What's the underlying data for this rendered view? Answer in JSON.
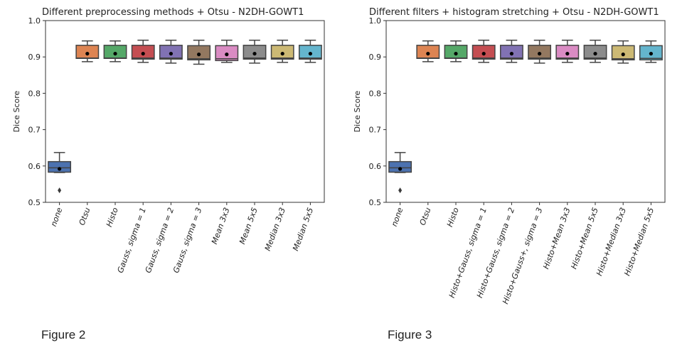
{
  "figures": [
    {
      "caption": "Figure 2"
    },
    {
      "caption": "Figure 3"
    }
  ],
  "chart_data": [
    {
      "type": "box",
      "title": "Different preprocessing methods + Otsu - N2DH-GOWT1",
      "ylabel": "Dice Score",
      "xlabel": "",
      "ylim": [
        0.5,
        1.0
      ],
      "yticks": [
        "0.5",
        "0.6",
        "0.7",
        "0.8",
        "0.9",
        "1.0"
      ],
      "grid": false,
      "mean_marker": "black dot",
      "categories": [
        "none",
        "Otsu",
        "Histo",
        "Gauss, sigma = 1",
        "Gauss, sigma = 2",
        "Gauss, sigma = 3",
        "Mean 3x3",
        "Mean 5x5",
        "Median 3x3",
        "Median 5x5"
      ],
      "colors": [
        "#4c72b0",
        "#dd8452",
        "#55a868",
        "#c44e52",
        "#8172b3",
        "#937860",
        "#da8bc3",
        "#8c8c8c",
        "#ccb974",
        "#64b5cd"
      ],
      "boxes": [
        {
          "whislo": 0.582,
          "q1": 0.583,
          "med": 0.595,
          "q3": 0.612,
          "whishi": 0.637,
          "mean": 0.592,
          "fliers": [
            0.533
          ]
        },
        {
          "whislo": 0.887,
          "q1": 0.896,
          "med": 0.897,
          "q3": 0.932,
          "whishi": 0.944,
          "mean": 0.909,
          "fliers": []
        },
        {
          "whislo": 0.887,
          "q1": 0.896,
          "med": 0.897,
          "q3": 0.932,
          "whishi": 0.944,
          "mean": 0.909,
          "fliers": []
        },
        {
          "whislo": 0.885,
          "q1": 0.894,
          "med": 0.897,
          "q3": 0.932,
          "whishi": 0.946,
          "mean": 0.909,
          "fliers": []
        },
        {
          "whislo": 0.883,
          "q1": 0.894,
          "med": 0.897,
          "q3": 0.932,
          "whishi": 0.946,
          "mean": 0.909,
          "fliers": []
        },
        {
          "whislo": 0.88,
          "q1": 0.892,
          "med": 0.895,
          "q3": 0.931,
          "whishi": 0.946,
          "mean": 0.907,
          "fliers": []
        },
        {
          "whislo": 0.885,
          "q1": 0.89,
          "med": 0.895,
          "q3": 0.931,
          "whishi": 0.946,
          "mean": 0.907,
          "fliers": []
        },
        {
          "whislo": 0.883,
          "q1": 0.894,
          "med": 0.897,
          "q3": 0.932,
          "whishi": 0.946,
          "mean": 0.909,
          "fliers": []
        },
        {
          "whislo": 0.885,
          "q1": 0.894,
          "med": 0.897,
          "q3": 0.932,
          "whishi": 0.946,
          "mean": 0.909,
          "fliers": []
        },
        {
          "whislo": 0.885,
          "q1": 0.894,
          "med": 0.897,
          "q3": 0.932,
          "whishi": 0.946,
          "mean": 0.909,
          "fliers": []
        }
      ]
    },
    {
      "type": "box",
      "title": "Different filters + histogram stretching + Otsu - N2DH-GOWT1",
      "ylabel": "Dice Score",
      "xlabel": "",
      "ylim": [
        0.5,
        1.0
      ],
      "yticks": [
        "0.5",
        "0.6",
        "0.7",
        "0.8",
        "0.9",
        "1.0"
      ],
      "grid": false,
      "mean_marker": "black dot",
      "categories": [
        "none",
        "Otsu",
        "Histo",
        "Histo+Gauss, sigma = 1",
        "Histo+Gauss, sigma = 2",
        "Histo+Gauss+, sigma = 3",
        "Histo+Mean 3x3",
        "Histo+Mean 5x5",
        "Histo+Median 3x3",
        "Histo+Median 5x5"
      ],
      "colors": [
        "#4c72b0",
        "#dd8452",
        "#55a868",
        "#c44e52",
        "#8172b3",
        "#937860",
        "#da8bc3",
        "#8c8c8c",
        "#ccb974",
        "#64b5cd"
      ],
      "boxes": [
        {
          "whislo": 0.582,
          "q1": 0.583,
          "med": 0.595,
          "q3": 0.612,
          "whishi": 0.637,
          "mean": 0.592,
          "fliers": [
            0.533
          ]
        },
        {
          "whislo": 0.887,
          "q1": 0.896,
          "med": 0.897,
          "q3": 0.932,
          "whishi": 0.944,
          "mean": 0.909,
          "fliers": []
        },
        {
          "whislo": 0.887,
          "q1": 0.896,
          "med": 0.897,
          "q3": 0.932,
          "whishi": 0.944,
          "mean": 0.909,
          "fliers": []
        },
        {
          "whislo": 0.885,
          "q1": 0.894,
          "med": 0.897,
          "q3": 0.932,
          "whishi": 0.946,
          "mean": 0.909,
          "fliers": []
        },
        {
          "whislo": 0.885,
          "q1": 0.894,
          "med": 0.897,
          "q3": 0.932,
          "whishi": 0.946,
          "mean": 0.909,
          "fliers": []
        },
        {
          "whislo": 0.883,
          "q1": 0.894,
          "med": 0.897,
          "q3": 0.932,
          "whishi": 0.946,
          "mean": 0.909,
          "fliers": []
        },
        {
          "whislo": 0.885,
          "q1": 0.894,
          "med": 0.897,
          "q3": 0.932,
          "whishi": 0.946,
          "mean": 0.909,
          "fliers": []
        },
        {
          "whislo": 0.885,
          "q1": 0.894,
          "med": 0.897,
          "q3": 0.932,
          "whishi": 0.946,
          "mean": 0.909,
          "fliers": []
        },
        {
          "whislo": 0.883,
          "q1": 0.892,
          "med": 0.895,
          "q3": 0.931,
          "whishi": 0.944,
          "mean": 0.907,
          "fliers": []
        },
        {
          "whislo": 0.885,
          "q1": 0.892,
          "med": 0.896,
          "q3": 0.931,
          "whishi": 0.944,
          "mean": 0.909,
          "fliers": []
        }
      ]
    }
  ]
}
